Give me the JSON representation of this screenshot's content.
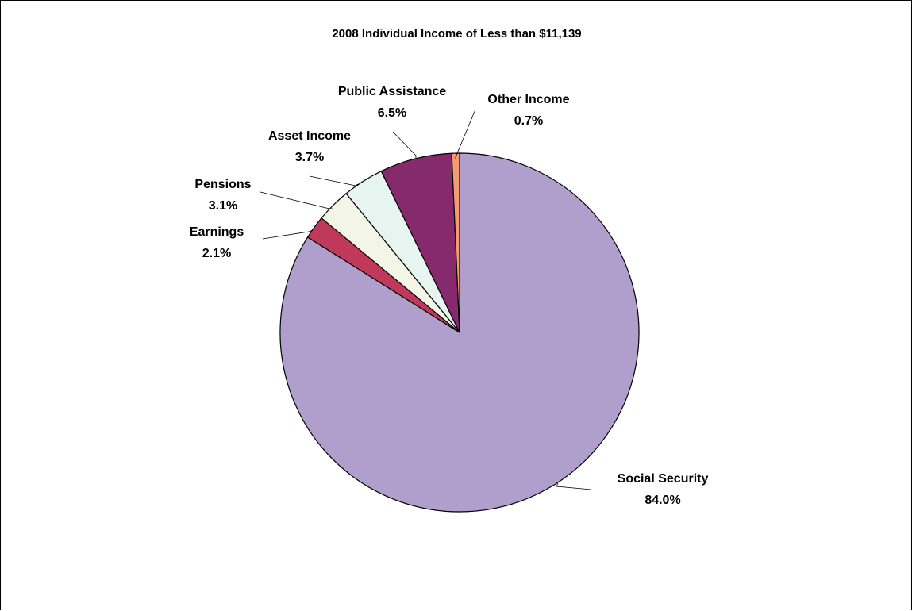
{
  "chart_data": {
    "type": "pie",
    "title": "2008 Individual Income of Less than $11,139",
    "slices": [
      {
        "label": "Social Security",
        "value": 84.0,
        "value_label": "84.0%",
        "color": "#b09fcc"
      },
      {
        "label": "Earnings",
        "value": 2.1,
        "value_label": "2.1%",
        "color": "#c0395a"
      },
      {
        "label": "Pensions",
        "value": 3.1,
        "value_label": "3.1%",
        "color": "#f3f6e6"
      },
      {
        "label": "Asset Income",
        "value": 3.7,
        "value_label": "3.7%",
        "color": "#e6f5f0"
      },
      {
        "label": "Public Assistance",
        "value": 6.5,
        "value_label": "6.5%",
        "color": "#862a6e"
      },
      {
        "label": "Other Income",
        "value": 0.7,
        "value_label": "0.7%",
        "color": "#f59a72"
      }
    ],
    "start": "12 o'clock, clockwise",
    "legend": "none"
  }
}
